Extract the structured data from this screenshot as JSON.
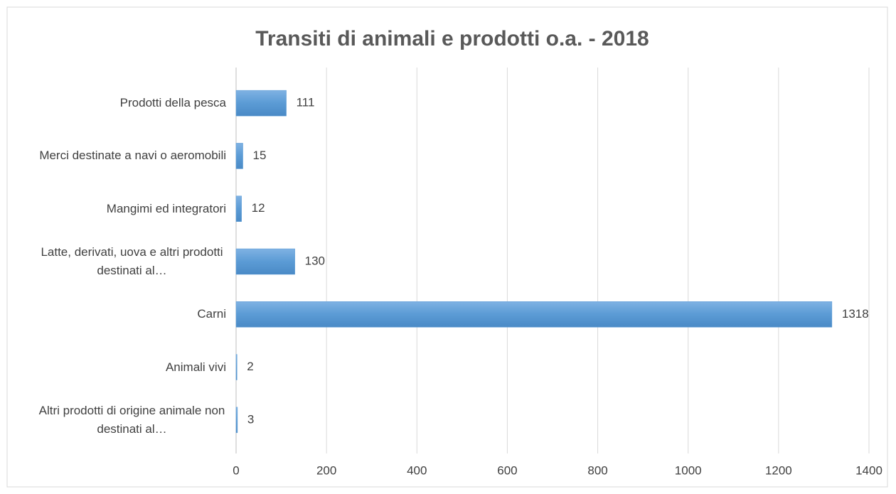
{
  "chart_data": {
    "type": "bar",
    "orientation": "horizontal",
    "title": "Transiti di animali e prodotti o.a. - 2018",
    "categories": [
      "Prodotti della pesca",
      "Merci destinate a navi o aeromobili",
      "Mangimi ed integratori",
      "Latte, derivati, uova e altri prodotti destinati al…",
      "Carni",
      "Animali vivi",
      "Altri prodotti di origine animale non destinati al…"
    ],
    "values": [
      111,
      15,
      12,
      130,
      1318,
      2,
      3
    ],
    "color": "#5b9bd5",
    "xlim": [
      0,
      1400
    ],
    "xticks": [
      0,
      200,
      400,
      600,
      800,
      1000,
      1200,
      1400
    ],
    "grid": true
  }
}
